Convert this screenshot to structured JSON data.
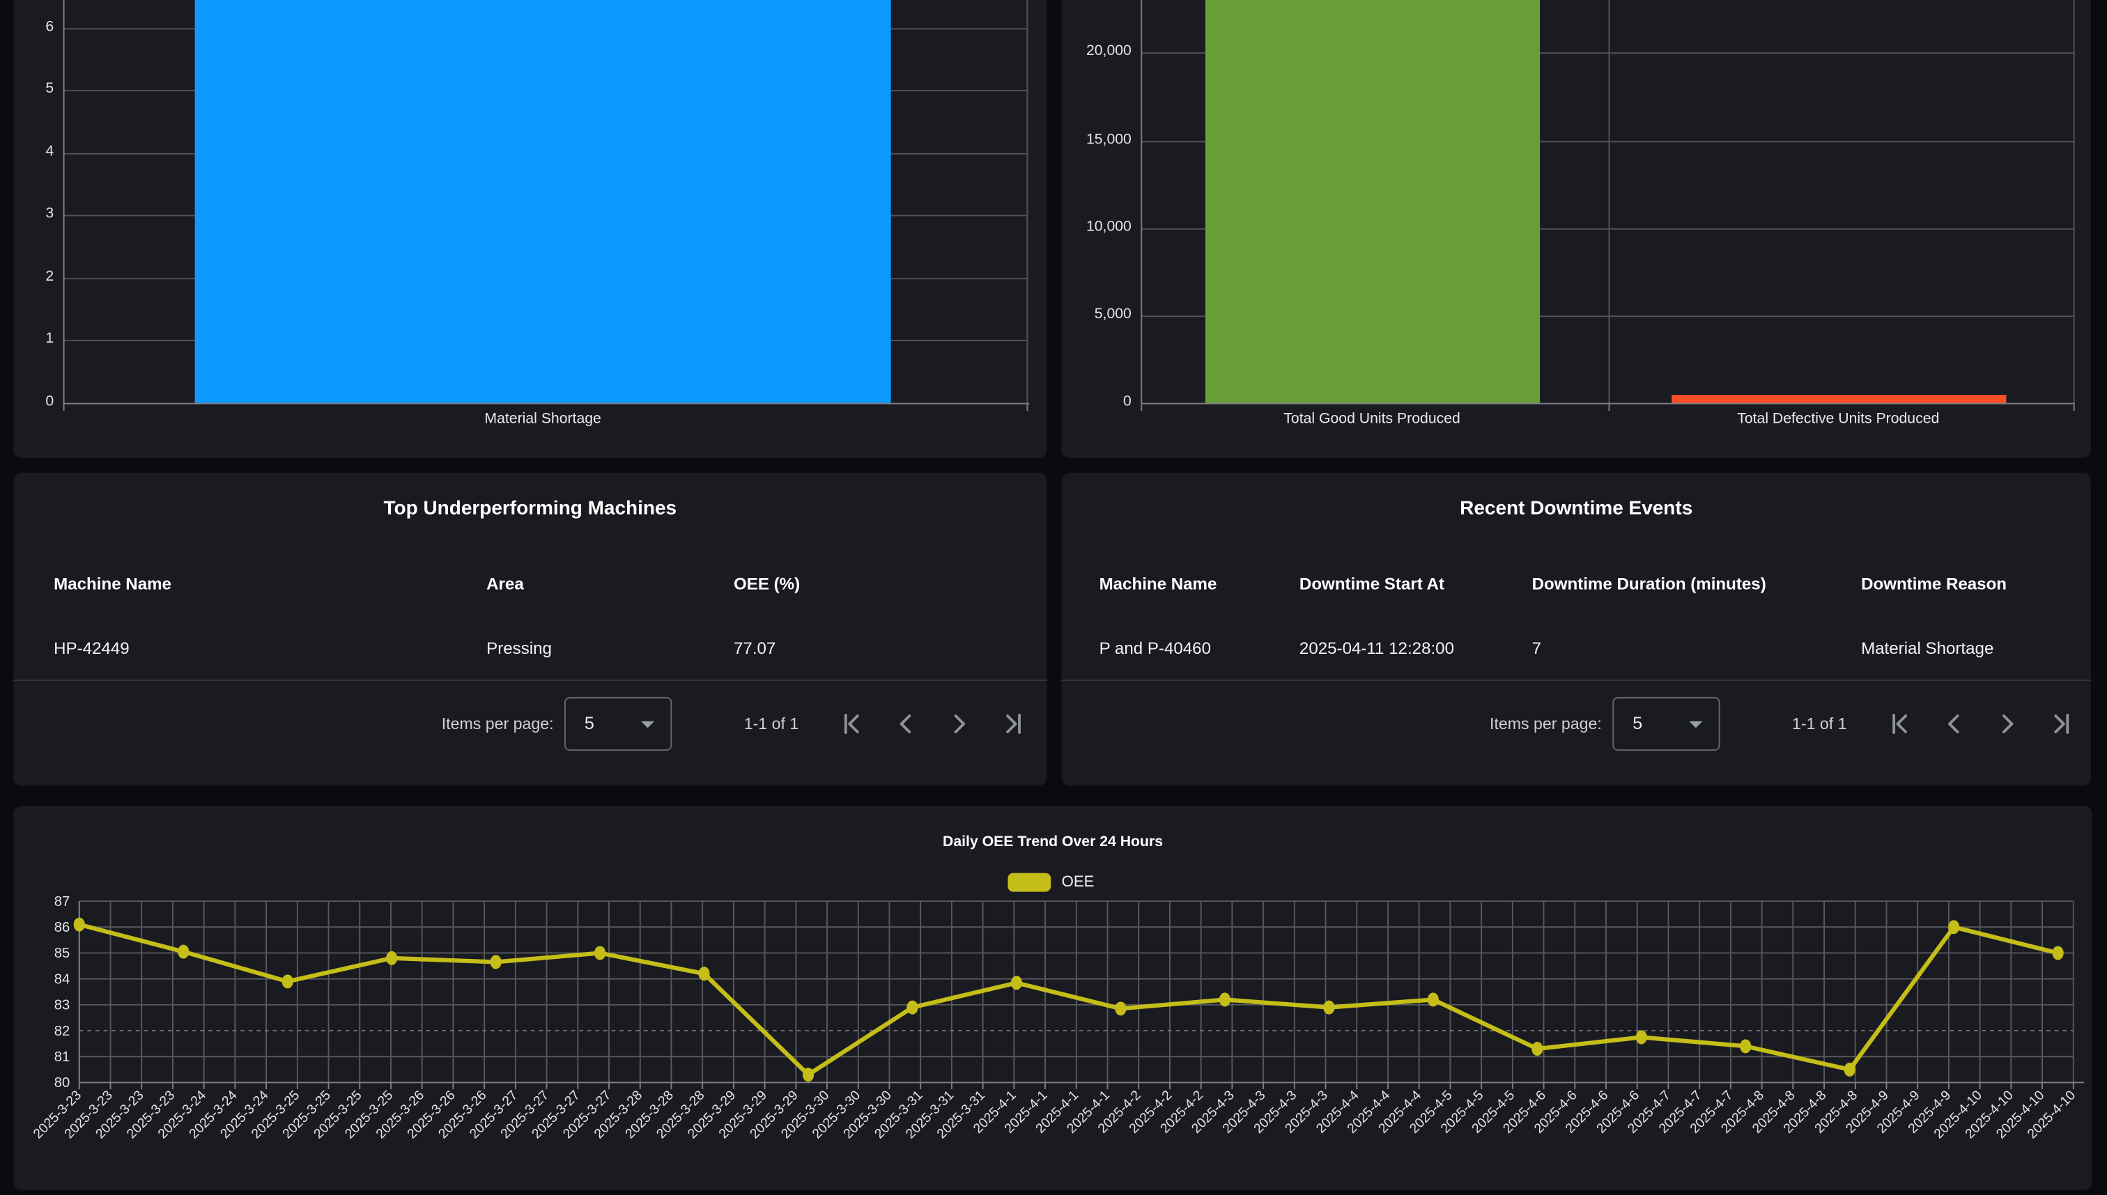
{
  "colors": {
    "page_bg": "#0a0b0e",
    "card_bg": "#191b21",
    "grid": "#515358",
    "axis": "#7d7f85",
    "bar_blue": "#0d99ff",
    "bar_green": "#689f38",
    "bar_red": "#fb4d26",
    "line_yellow": "#c5bd18",
    "text_primary": "#ffffff",
    "text_secondary": "#cfd1d4"
  },
  "chart_data": [
    {
      "id": "downtime_by_reason",
      "type": "bar",
      "categories": [
        "Material Shortage"
      ],
      "values": [
        7
      ],
      "note": "bar is cut off at top of viewport; visible y-axis range 0-6",
      "y_ticks": [
        "0",
        "1",
        "2",
        "3",
        "4",
        "5",
        "6"
      ],
      "ylim": [
        0,
        6.5
      ],
      "bar_color": "#0d99ff",
      "grid": true,
      "legend_position": "none"
    },
    {
      "id": "units_produced",
      "type": "bar",
      "categories": [
        "Total Good Units Produced",
        "Total Defective Units Produced"
      ],
      "values": [
        22500,
        500
      ],
      "note": "green bar cut off at top of viewport (>21500, estimated); red bar ~500 estimated from gridlines",
      "y_ticks": [
        "0",
        "5,000",
        "10,000",
        "15,000",
        "20,000"
      ],
      "ylim": [
        0,
        21500
      ],
      "bar_colors": [
        "#689f38",
        "#fb4d26"
      ],
      "grid": true,
      "legend_position": "none"
    },
    {
      "id": "oee_trend",
      "type": "line",
      "title": "Daily OEE Trend Over 24 Hours",
      "legend": [
        "OEE"
      ],
      "legend_position": "top",
      "line_color": "#c5bd18",
      "ylim": [
        80,
        87
      ],
      "y_ticks": [
        "87",
        "86",
        "85",
        "84",
        "83",
        "82",
        "81",
        "80"
      ],
      "dashed_gridline_at": "82",
      "values": [
        86.1,
        85.05,
        83.9,
        84.8,
        84.65,
        85.0,
        84.2,
        80.3,
        82.9,
        83.85,
        82.85,
        83.2,
        82.9,
        83.2,
        81.3,
        81.75,
        81.4,
        80.5,
        86.0,
        85.0
      ],
      "points_note": "20 points evenly spaced from 2025-3-23 through 2025-4-10",
      "x_tick_labels": [
        "2025-3-23",
        "2025-3-23",
        "2025-3-23",
        "2025-3-23",
        "2025-3-24",
        "2025-3-24",
        "2025-3-24",
        "2025-3-25",
        "2025-3-25",
        "2025-3-25",
        "2025-3-25",
        "2025-3-26",
        "2025-3-26",
        "2025-3-26",
        "2025-3-27",
        "2025-3-27",
        "2025-3-27",
        "2025-3-27",
        "2025-3-28",
        "2025-3-28",
        "2025-3-28",
        "2025-3-29",
        "2025-3-29",
        "2025-3-29",
        "2025-3-30",
        "2025-3-30",
        "2025-3-30",
        "2025-3-31",
        "2025-3-31",
        "2025-3-31",
        "2025-4-1",
        "2025-4-1",
        "2025-4-1",
        "2025-4-1",
        "2025-4-2",
        "2025-4-2",
        "2025-4-2",
        "2025-4-3",
        "2025-4-3",
        "2025-4-3",
        "2025-4-3",
        "2025-4-4",
        "2025-4-4",
        "2025-4-4",
        "2025-4-5",
        "2025-4-5",
        "2025-4-5",
        "2025-4-6",
        "2025-4-6",
        "2025-4-6",
        "2025-4-6",
        "2025-4-7",
        "2025-4-7",
        "2025-4-7",
        "2025-4-8",
        "2025-4-8",
        "2025-4-8",
        "2025-4-8",
        "2025-4-9",
        "2025-4-9",
        "2025-4-9",
        "2025-4-10",
        "2025-4-10",
        "2025-4-10",
        "2025-4-10"
      ]
    }
  ],
  "tables": {
    "underperforming": {
      "title": "Top Underperforming Machines",
      "columns": [
        "Machine Name",
        "Area",
        "OEE (%)"
      ],
      "rows": [
        [
          "HP-42449",
          "Pressing",
          "77.07"
        ]
      ],
      "pagination": {
        "items_per_page_label": "Items per page:",
        "page_size": "5",
        "range_label": "1-1 of 1"
      }
    },
    "downtime_events": {
      "title": "Recent Downtime Events",
      "columns": [
        "Machine Name",
        "Downtime Start At",
        "Downtime Duration (minutes)",
        "Downtime Reason"
      ],
      "rows": [
        [
          "P and P-40460",
          "2025-04-11 12:28:00",
          "7",
          "Material Shortage"
        ]
      ],
      "pagination": {
        "items_per_page_label": "Items per page:",
        "page_size": "5",
        "range_label": "1-1 of 1"
      }
    }
  }
}
